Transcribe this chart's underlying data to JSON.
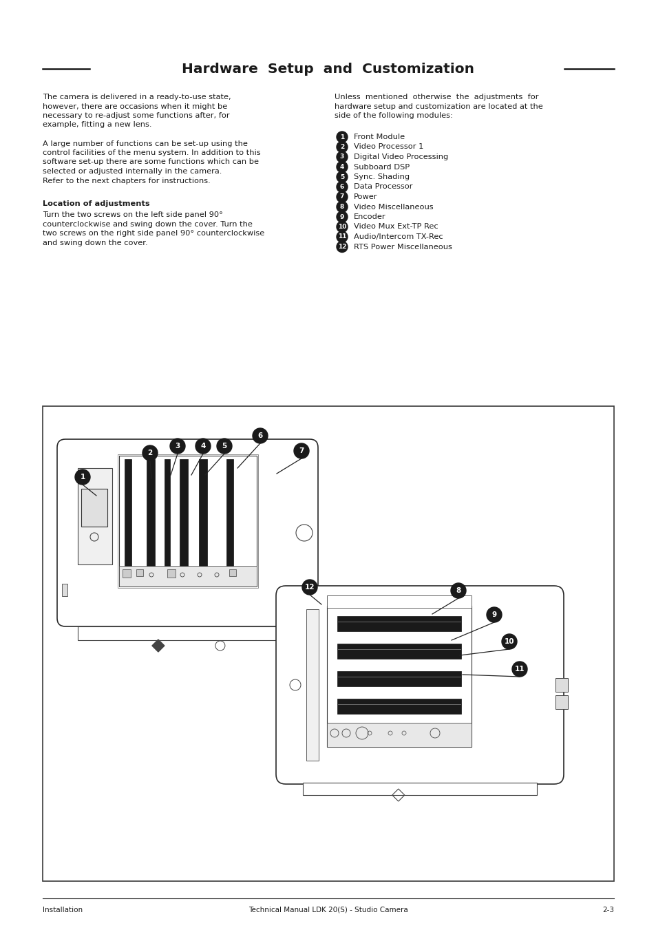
{
  "title": "Hardware  Setup  and  Customization",
  "bg_color": "#ffffff",
  "text_color": "#1a1a1a",
  "modules": [
    {
      "num": "1",
      "text": "Front Module"
    },
    {
      "num": "2",
      "text": "Video Processor 1"
    },
    {
      "num": "3",
      "text": "Digital Video Processing"
    },
    {
      "num": "4",
      "text": "Subboard DSP"
    },
    {
      "num": "5",
      "text": "Sync. Shading"
    },
    {
      "num": "6",
      "text": "Data Processor"
    },
    {
      "num": "7",
      "text": "Power"
    },
    {
      "num": "8",
      "text": "Video Miscellaneous"
    },
    {
      "num": "9",
      "text": "Encoder"
    },
    {
      "num": "10",
      "text": "Video Mux Ext-TP Rec"
    },
    {
      "num": "11",
      "text": "Audio/Intercom TX-Rec"
    },
    {
      "num": "12",
      "text": "RTS Power Miscellaneous"
    }
  ],
  "footer_left": "Installation",
  "footer_center": "Technical Manual LDK 20(S) - Studio Camera",
  "footer_right": "2-3"
}
